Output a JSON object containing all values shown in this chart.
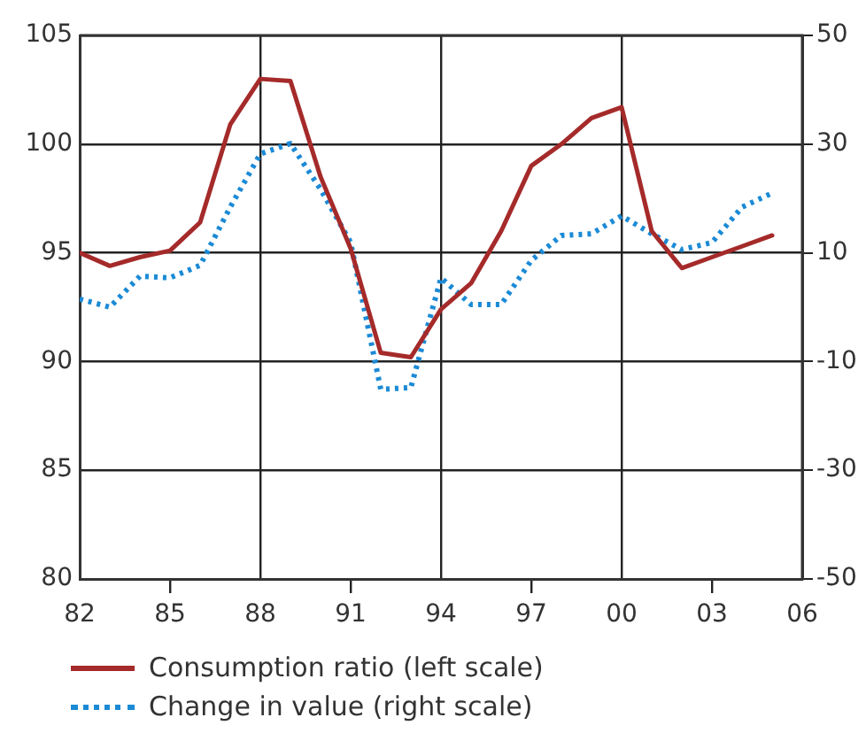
{
  "chart_data": {
    "type": "line",
    "x": [
      1982,
      1983,
      1984,
      1985,
      1986,
      1987,
      1988,
      1989,
      1990,
      1991,
      1992,
      1993,
      1994,
      1995,
      1996,
      1997,
      1998,
      1999,
      2000,
      2001,
      2002,
      2003,
      2004,
      2005
    ],
    "series": [
      {
        "name": "Consumption ratio (left scale)",
        "color": "#a52a2a",
        "line_style": "solid",
        "values": [
          95.0,
          94.4,
          94.8,
          95.1,
          96.4,
          100.9,
          103.0,
          102.9,
          98.5,
          95.2,
          90.4,
          90.2,
          92.4,
          93.6,
          96.0,
          99.0,
          100.0,
          101.2,
          101.7,
          96.0,
          94.3,
          94.8,
          95.3,
          95.8
        ]
      },
      {
        "name": "Change in value (right scale)",
        "color": "#1b8ad6",
        "line_style": "dotted",
        "axis": "y2",
        "values": [
          1.5,
          0,
          5.7,
          5.4,
          7.7,
          18.4,
          28.2,
          30.1,
          21.7,
          11.9,
          -15.1,
          -14.8,
          5.4,
          0.5,
          0.5,
          8.6,
          13.2,
          13.5,
          16.8,
          13.5,
          10.6,
          11.9,
          18.4,
          21.0
        ]
      }
    ],
    "xlim": [
      1982,
      2006
    ],
    "xticks": [
      {
        "value": 1982,
        "label": "82"
      },
      {
        "value": 1985,
        "label": "85"
      },
      {
        "value": 1988,
        "label": "88"
      },
      {
        "value": 1991,
        "label": "91"
      },
      {
        "value": 1994,
        "label": "94"
      },
      {
        "value": 1997,
        "label": "97"
      },
      {
        "value": 2000,
        "label": "00"
      },
      {
        "value": 2003,
        "label": "03"
      },
      {
        "value": 2006,
        "label": "06"
      }
    ],
    "ylim": [
      80,
      105
    ],
    "yticks": [
      80,
      85,
      90,
      95,
      100,
      105
    ],
    "y2lim": [
      -50,
      50
    ],
    "y2ticks": [
      -50,
      -30,
      -10,
      10,
      30,
      50
    ],
    "grid": true,
    "legend": "bottom",
    "marker": "none"
  }
}
